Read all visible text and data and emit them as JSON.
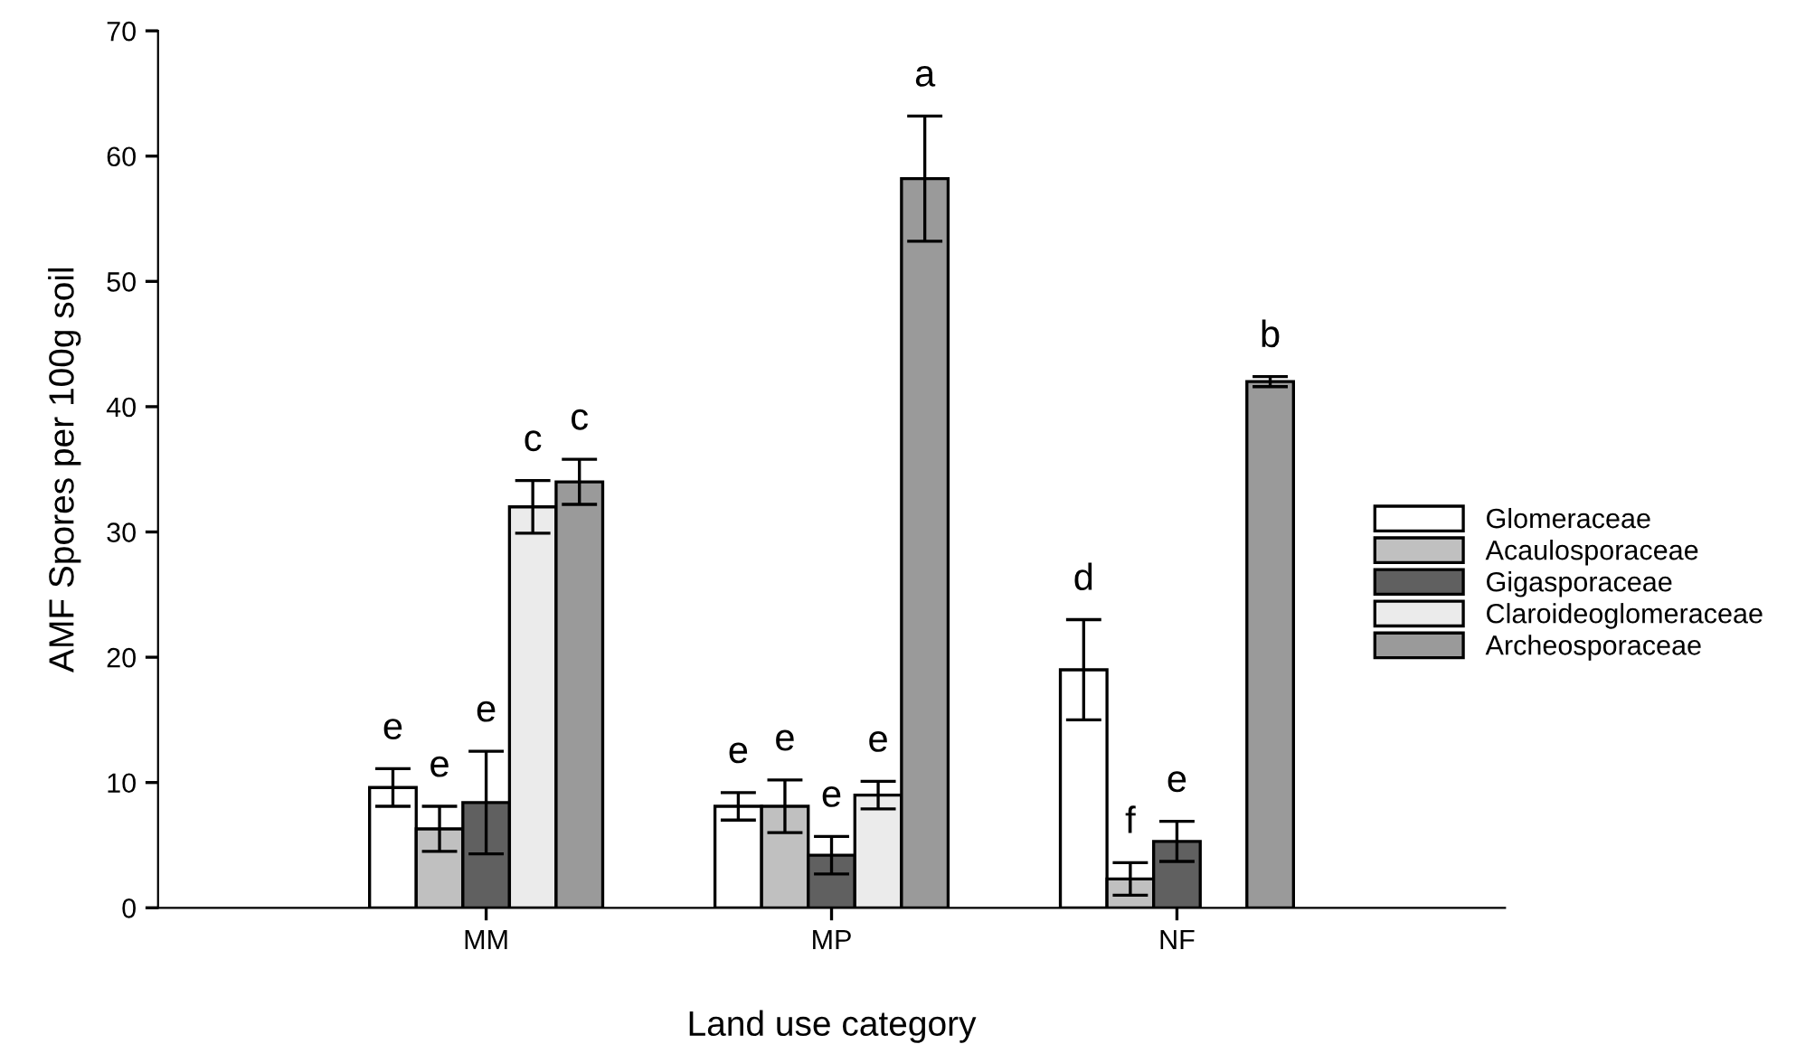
{
  "chart_data": {
    "type": "bar",
    "xlabel": "Land use category",
    "ylabel": "AMF Spores per 100g soil",
    "categories": [
      "MM",
      "MP",
      "NF"
    ],
    "series": [
      {
        "name": "Glomeraceae",
        "color": "#ffffff",
        "values": [
          9.6,
          8.1,
          19.0
        ],
        "errors": [
          1.5,
          1.1,
          4.0
        ],
        "value_labels": [
          "e",
          "e",
          "d"
        ]
      },
      {
        "name": "Acaulosporaceae",
        "color": "#c0c0c0",
        "values": [
          6.3,
          8.1,
          2.3
        ],
        "errors": [
          1.8,
          2.1,
          1.3
        ],
        "value_labels": [
          "e",
          "e",
          "f"
        ]
      },
      {
        "name": "Gigasporaceae",
        "color": "#606060",
        "values": [
          8.4,
          4.2,
          5.3
        ],
        "errors": [
          4.1,
          1.5,
          1.6
        ],
        "value_labels": [
          "e",
          "e",
          "e"
        ]
      },
      {
        "name": "Claroideoglomeraceae",
        "color": "#ebebeb",
        "values": [
          32.0,
          9.0,
          null
        ],
        "errors": [
          2.1,
          1.1,
          null
        ],
        "value_labels": [
          "c",
          "e",
          null
        ]
      },
      {
        "name": "Archeosporaceae",
        "color": "#9a9a9a",
        "values": [
          34.0,
          58.2,
          42.0
        ],
        "errors": [
          1.8,
          5.0,
          0.4
        ],
        "value_labels": [
          "c",
          "a",
          "b"
        ]
      }
    ],
    "ylim": [
      0,
      70
    ],
    "yticks": [
      0,
      10,
      20,
      30,
      40,
      50,
      60,
      70
    ],
    "grid": false,
    "legend": "right"
  }
}
